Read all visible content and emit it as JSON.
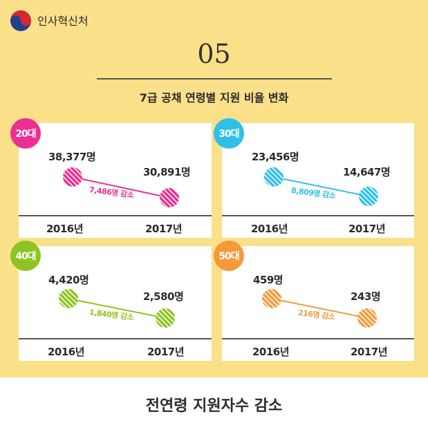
{
  "header": {
    "org_name": "인사혁신처",
    "number": "05",
    "subtitle": "7급 공채 연령별 지원 비율 변화"
  },
  "cards": [
    {
      "badge": "20대",
      "color": "#ec2f92",
      "year_a": "2016년",
      "year_b": "2017년",
      "val_a": "38,377명",
      "val_b": "30,891명",
      "diff": "7,486명 감소"
    },
    {
      "badge": "30대",
      "color": "#2fc0ea",
      "year_a": "2016년",
      "year_b": "2017년",
      "val_a": "23,456명",
      "val_b": "14,647명",
      "diff": "8,809명 감소"
    },
    {
      "badge": "40대",
      "color": "#8cc521",
      "year_a": "2016년",
      "year_b": "2017년",
      "val_a": "4,420명",
      "val_b": "2,580명",
      "diff": "1,840명 감소"
    },
    {
      "badge": "50대",
      "color": "#f59a3a",
      "year_a": "2016년",
      "year_b": "2017년",
      "val_a": "459명",
      "val_b": "243명",
      "diff": "216명 감소"
    }
  ],
  "footer": {
    "text": "전연령 지원자수 감소"
  }
}
